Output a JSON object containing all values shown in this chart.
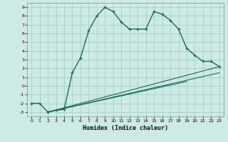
{
  "xlabel": "Humidex (Indice chaleur)",
  "background_color": "#ceeae5",
  "grid_color": "#a8d4ce",
  "line_color": "#1a6b5a",
  "xlim": [
    -0.5,
    23.5
  ],
  "ylim": [
    -3.5,
    9.5
  ],
  "xticks": [
    0,
    1,
    2,
    3,
    4,
    5,
    6,
    7,
    8,
    9,
    10,
    11,
    12,
    13,
    14,
    15,
    16,
    17,
    18,
    19,
    20,
    21,
    22,
    23
  ],
  "yticks": [
    -3,
    -2,
    -1,
    0,
    1,
    2,
    3,
    4,
    5,
    6,
    7,
    8,
    9
  ],
  "series1_x": [
    0,
    1,
    2,
    3,
    4,
    5,
    6,
    7,
    8,
    9,
    10,
    11,
    12,
    13,
    14,
    15,
    16,
    17,
    18,
    19,
    20,
    21,
    22,
    23
  ],
  "series1_y": [
    -2,
    -2,
    -3,
    -2.8,
    -2.7,
    1.5,
    3.2,
    6.3,
    8.0,
    9.0,
    8.5,
    7.3,
    6.5,
    6.5,
    6.5,
    8.5,
    8.2,
    7.5,
    6.5,
    4.3,
    3.5,
    2.8,
    2.8,
    2.2
  ],
  "series2_x": [
    2,
    23
  ],
  "series2_y": [
    -3,
    2.2
  ],
  "series3_x": [
    2,
    23
  ],
  "series3_y": [
    -3,
    1.5
  ],
  "series4_x": [
    2,
    19
  ],
  "series4_y": [
    -3,
    0.5
  ]
}
